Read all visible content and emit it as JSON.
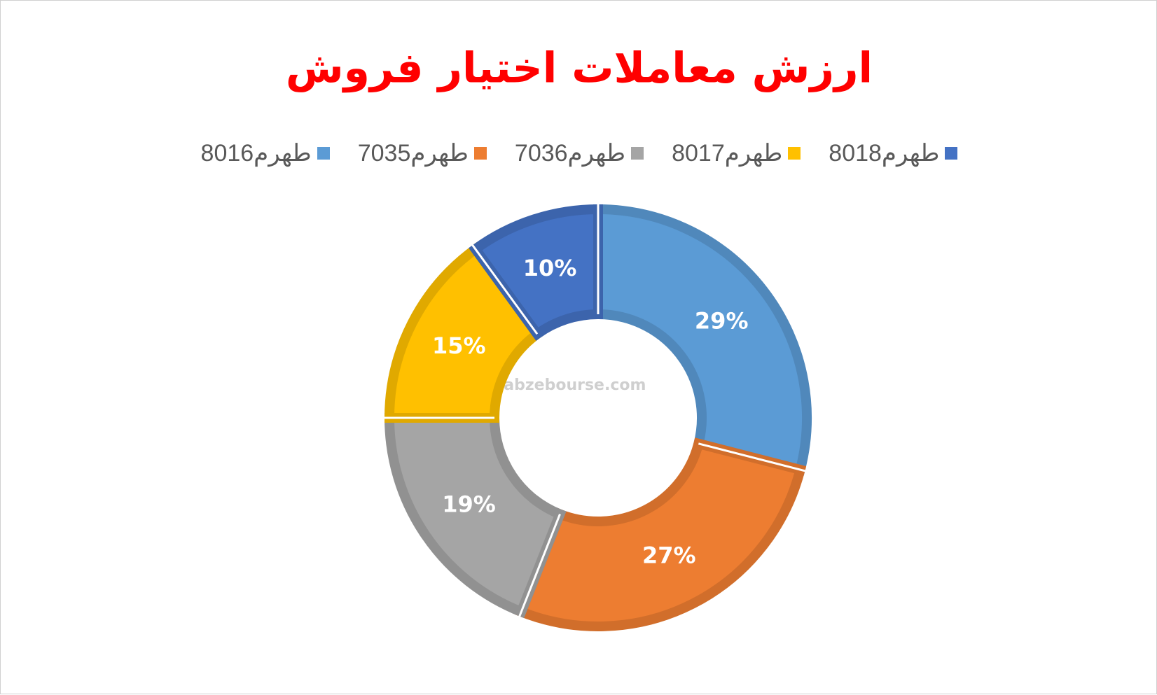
{
  "chart_data": {
    "type": "donut",
    "title": "ارزش معاملات اختیار فروش",
    "categories": [
      "طهرم8016",
      "طهرم7035",
      "طهرم7036",
      "طهرم8017",
      "طهرم8018"
    ],
    "values": [
      29,
      27,
      19,
      15,
      10
    ],
    "value_labels": [
      "29%",
      "27%",
      "19%",
      "15%",
      "10%"
    ],
    "colors": [
      "#5b9bd5",
      "#ed7d31",
      "#a5a5a5",
      "#ffc000",
      "#4472c4"
    ],
    "legend": "top",
    "watermark": "nabzebourse.com"
  }
}
